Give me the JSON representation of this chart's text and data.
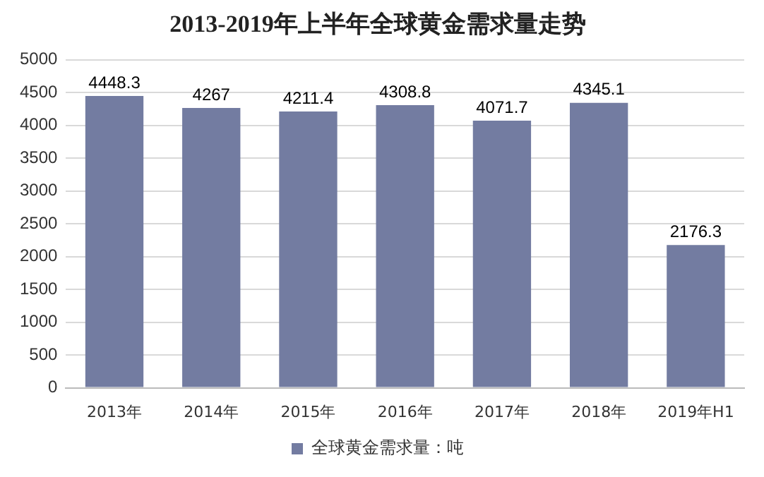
{
  "chart_data": {
    "type": "bar",
    "title": "2013-2019年上半年全球黄金需求量走势",
    "categories": [
      "2013年",
      "2014年",
      "2015年",
      "2016年",
      "2017年",
      "2018年",
      "2019年H1"
    ],
    "series": [
      {
        "name": "全球黄金需求量：吨",
        "color": "#737ca1",
        "values": [
          4448.3,
          4267,
          4211.4,
          4308.8,
          4071.7,
          4345.1,
          2176.3
        ]
      }
    ],
    "ylim": [
      0,
      5000
    ],
    "yticks": [
      0,
      500,
      1000,
      1500,
      2000,
      2500,
      3000,
      3500,
      4000,
      4500,
      5000
    ],
    "grid": "y",
    "legend": "bottom",
    "data_labels": true
  }
}
